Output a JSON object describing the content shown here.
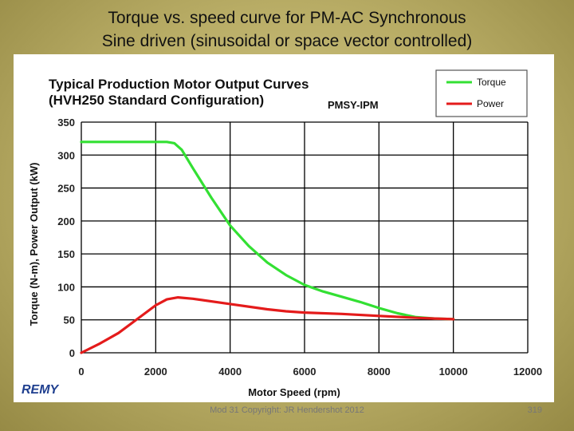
{
  "slide": {
    "title_line1": "Torque vs. speed curve for PM-AC Synchronous",
    "title_line2": "Sine driven (sinusoidal or space vector controlled)",
    "logo_text": "REMY",
    "footer": "Mod 31 Copyright: JR Hendershot 2012",
    "page_number": "319"
  },
  "colors": {
    "torque": "#33e033",
    "power": "#e41b1b",
    "grid": "#000000",
    "axis_text": "#222222"
  },
  "chart_data": {
    "type": "line",
    "title_line1": "Typical Production Motor Output Curves",
    "title_line2": "(HVH250 Standard Configuration)",
    "annotation": "PMSY-IPM",
    "xlabel": "Motor Speed (rpm)",
    "ylabel": "Torque (N-m), Power Output (kW)",
    "xlim": [
      0,
      12000
    ],
    "ylim": [
      0,
      350
    ],
    "xticks": [
      0,
      2000,
      4000,
      6000,
      8000,
      10000,
      12000
    ],
    "xtick_labels": [
      "0",
      "2000",
      "4000",
      "6000",
      "8000",
      "10000",
      "12000"
    ],
    "yticks": [
      0,
      50,
      100,
      150,
      200,
      250,
      300,
      350
    ],
    "ytick_labels": [
      "0",
      "50",
      "100",
      "150",
      "200",
      "250",
      "300",
      "350"
    ],
    "grid": true,
    "legend_position": "top-right",
    "series": [
      {
        "name": "Torque",
        "x": [
          0,
          500,
          1000,
          1500,
          2000,
          2300,
          2500,
          2700,
          3000,
          3500,
          4000,
          4500,
          5000,
          5500,
          6000,
          6500,
          7000,
          7500,
          8000,
          8500,
          9000,
          9500,
          10000
        ],
        "y": [
          320,
          320,
          320,
          320,
          320,
          320,
          318,
          308,
          280,
          235,
          193,
          162,
          137,
          118,
          103,
          93,
          85,
          77,
          68,
          60,
          54,
          52,
          51
        ]
      },
      {
        "name": "Power",
        "x": [
          0,
          500,
          1000,
          1500,
          2000,
          2300,
          2600,
          3000,
          4000,
          5000,
          5500,
          6000,
          7000,
          8000,
          9000,
          9500,
          10000
        ],
        "y": [
          0,
          14,
          30,
          51,
          72,
          81,
          84,
          82,
          74,
          66,
          63,
          61,
          59,
          56,
          53,
          52,
          51
        ]
      }
    ]
  }
}
